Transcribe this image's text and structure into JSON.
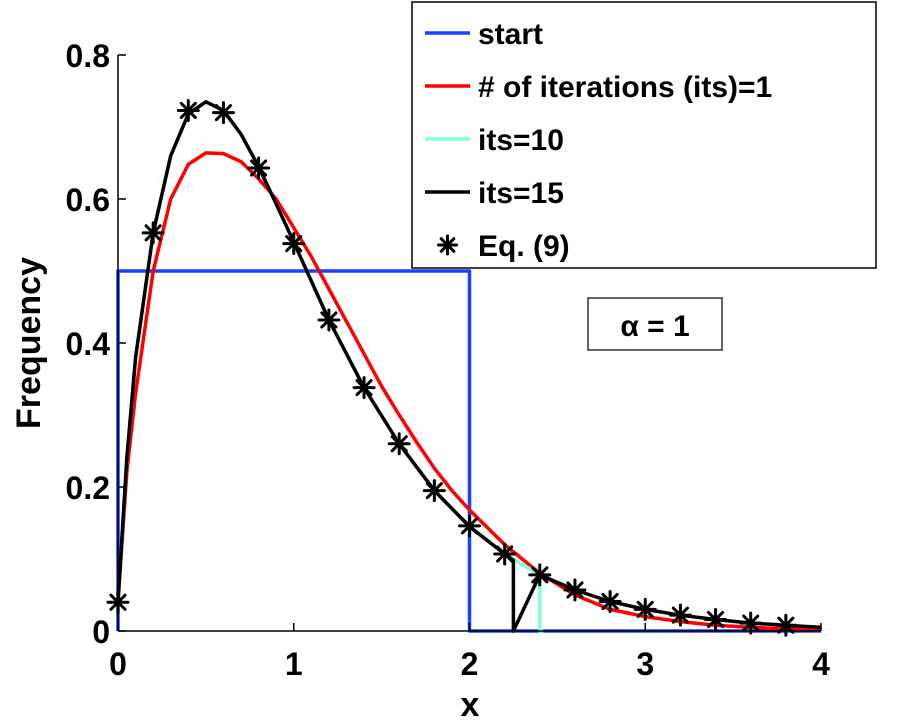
{
  "chart_data": {
    "type": "line",
    "xlabel": "x",
    "ylabel": "Frequency",
    "xlim": [
      0,
      4
    ],
    "ylim": [
      0,
      0.8
    ],
    "xticks": [
      0,
      1,
      2,
      3,
      4
    ],
    "xtick_labels": [
      "0",
      "1",
      "2",
      "3",
      "4"
    ],
    "yticks": [
      0,
      0.2,
      0.4,
      0.6,
      0.8
    ],
    "ytick_labels": [
      "0",
      "0.2",
      "0.4",
      "0.6",
      "0.8"
    ],
    "grid": false,
    "legend_position": "top-right",
    "annotation": "α = 1",
    "series": [
      {
        "name": "start",
        "color": "#1f3fff",
        "style": "line",
        "x": [
          0,
          0,
          2,
          2,
          4
        ],
        "y": [
          0,
          0.5,
          0.5,
          0,
          0
        ]
      },
      {
        "name": "# of iterations (its)=1",
        "color": "#ff0000",
        "style": "line",
        "x": [
          0,
          0.05,
          0.1,
          0.2,
          0.3,
          0.4,
          0.5,
          0.6,
          0.7,
          0.8,
          0.9,
          1.0,
          1.1,
          1.2,
          1.3,
          1.4,
          1.5,
          1.6,
          1.7,
          1.8,
          1.9,
          2.0,
          2.2,
          2.4,
          2.6,
          2.8,
          3.0,
          3.2,
          3.4,
          3.6,
          3.8,
          4.0
        ],
        "y": [
          0.04,
          0.22,
          0.33,
          0.5,
          0.6,
          0.648,
          0.664,
          0.663,
          0.652,
          0.628,
          0.6,
          0.56,
          0.52,
          0.475,
          0.43,
          0.385,
          0.34,
          0.3,
          0.262,
          0.226,
          0.195,
          0.168,
          0.12,
          0.08,
          0.05,
          0.03,
          0.02,
          0.013,
          0.008,
          0.005,
          0.003,
          0.002
        ]
      },
      {
        "name": "its=10",
        "color": "#7fffd4",
        "style": "line",
        "x": [
          0,
          0.05,
          0.1,
          0.2,
          0.3,
          0.4,
          0.5,
          0.6,
          0.7,
          0.8,
          0.9,
          1.0,
          1.2,
          1.4,
          1.6,
          1.8,
          2.0,
          2.2,
          2.4,
          2.4,
          2.42
        ],
        "y": [
          0.04,
          0.24,
          0.38,
          0.553,
          0.66,
          0.718,
          0.735,
          0.723,
          0.69,
          0.645,
          0.593,
          0.54,
          0.432,
          0.338,
          0.26,
          0.195,
          0.145,
          0.107,
          0.078,
          0,
          0
        ]
      },
      {
        "name": "its=15",
        "color": "#000000",
        "style": "line",
        "x": [
          0,
          0.05,
          0.1,
          0.2,
          0.3,
          0.4,
          0.5,
          0.6,
          0.7,
          0.8,
          0.9,
          1.0,
          1.2,
          1.4,
          1.6,
          1.8,
          2.0,
          2.2,
          2.25,
          2.25,
          2.4,
          2.6,
          2.8,
          3.0,
          3.2,
          3.4,
          3.6,
          3.8,
          4.0
        ],
        "y": [
          0.04,
          0.24,
          0.38,
          0.553,
          0.66,
          0.718,
          0.735,
          0.723,
          0.69,
          0.645,
          0.593,
          0.54,
          0.432,
          0.338,
          0.26,
          0.195,
          0.145,
          0.107,
          0.098,
          0,
          0.078,
          0.057,
          0.041,
          0.03,
          0.022,
          0.016,
          0.011,
          0.008,
          0.005
        ]
      },
      {
        "name": "Eq. (9)",
        "color": "#000000",
        "style": "marker",
        "marker": "asterisk",
        "x": [
          0,
          0.2,
          0.4,
          0.6,
          0.8,
          1.0,
          1.2,
          1.4,
          1.6,
          1.8,
          2.0,
          2.2,
          2.4,
          2.6,
          2.8,
          3.0,
          3.2,
          3.4,
          3.6,
          3.8
        ],
        "y": [
          0.04,
          0.553,
          0.723,
          0.72,
          0.643,
          0.538,
          0.432,
          0.338,
          0.26,
          0.195,
          0.146,
          0.107,
          0.078,
          0.057,
          0.041,
          0.03,
          0.022,
          0.016,
          0.011,
          0.008
        ]
      }
    ]
  }
}
